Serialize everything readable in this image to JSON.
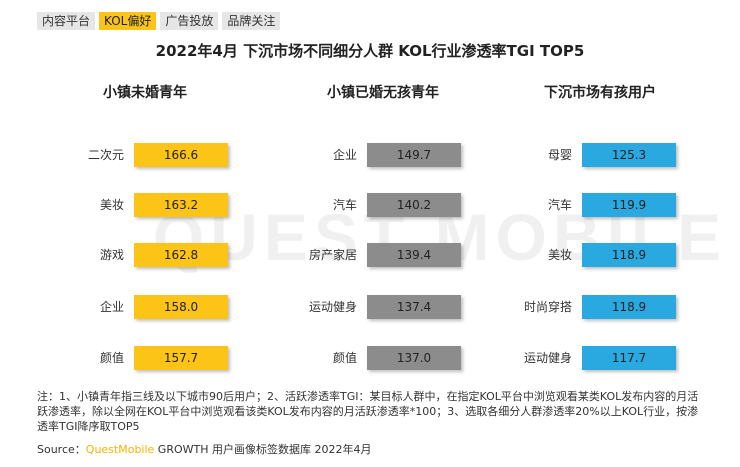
{
  "tabs": [
    "内容平台",
    "KOL偏好",
    "广告投放",
    "品牌关注"
  ],
  "active_tab": 1,
  "chart_data": [
    {
      "type": "bar",
      "title": "2022年4月 下沉市场不同细分人群 KOL行业渗透率TGI TOP5",
      "panel_title": "小镇未婚青年",
      "categories": [
        "二次元",
        "美妆",
        "游戏",
        "企业",
        "颜值"
      ],
      "values": [
        166.6,
        163.2,
        162.8,
        158.0,
        157.7
      ],
      "labels": [
        "166.6",
        "163.2",
        "162.8",
        "158.0",
        "157.7"
      ],
      "color": "#fcc419"
    },
    {
      "type": "bar",
      "panel_title": "小镇已婚无孩青年",
      "categories": [
        "企业",
        "汽车",
        "房产家居",
        "运动健身",
        "颜值"
      ],
      "values": [
        149.7,
        140.2,
        139.4,
        137.4,
        137.0
      ],
      "labels": [
        "149.7",
        "140.2",
        "139.4",
        "137.4",
        "137.0"
      ],
      "color": "#8c8c8c"
    },
    {
      "type": "bar",
      "panel_title": "下沉市场有孩用户",
      "categories": [
        "母婴",
        "汽车",
        "美妆",
        "时尚穿搭",
        "运动健身"
      ],
      "values": [
        125.3,
        119.9,
        118.9,
        118.9,
        117.7
      ],
      "labels": [
        "125.3",
        "119.9",
        "118.9",
        "118.9",
        "117.7"
      ],
      "color": "#29a8e0"
    }
  ],
  "watermark": "QUEST MOBILE",
  "notes": "注：1、小镇青年指三线及以下城市90后用户；2、活跃渗透率TGI：某目标人群中，在指定KOL平台中浏览观看某类KOL发布内容的月活跃渗透率，除以全网在KOL平台中浏览观看该类KOL发布内容的月活跃渗透率*100；3、选取各细分人群渗透率20%以上KOL行业，按渗透率TGI降序取TOP5",
  "source": {
    "prefix": "Source：",
    "brand": "QuestMobile",
    "suffix": " GROWTH 用户画像标签数据库 2022年4月"
  }
}
